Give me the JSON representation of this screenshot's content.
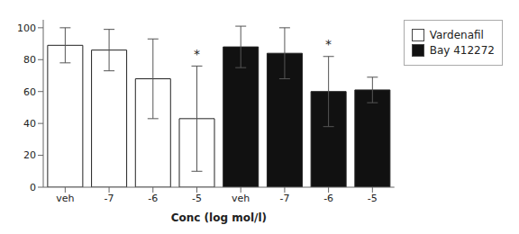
{
  "chart_data": {
    "type": "bar",
    "xlabel": "Conc (log mol/l)",
    "categories": [
      "veh",
      "-7",
      "-6",
      "-5",
      "veh",
      "-7",
      "-6",
      "-5"
    ],
    "series": [
      {
        "name": "Vardenafil",
        "color": "white",
        "values": [
          89,
          86,
          68,
          43,
          null,
          null,
          null,
          null
        ],
        "errors": [
          11,
          13,
          25,
          33,
          null,
          null,
          null,
          null
        ]
      },
      {
        "name": "Bay 412272",
        "color": "#111111",
        "values": [
          null,
          null,
          null,
          null,
          88,
          84,
          60,
          61
        ],
        "errors": [
          null,
          null,
          null,
          null,
          13,
          16,
          22,
          8
        ]
      }
    ],
    "annotations": [
      {
        "text": "*",
        "x": 3,
        "y": 78
      },
      {
        "text": "*",
        "x": 6,
        "y": 84
      }
    ],
    "ylim": [
      0,
      105
    ],
    "yticks": [
      0,
      20,
      40,
      60,
      80,
      100
    ],
    "grid": false,
    "legend": "right"
  }
}
